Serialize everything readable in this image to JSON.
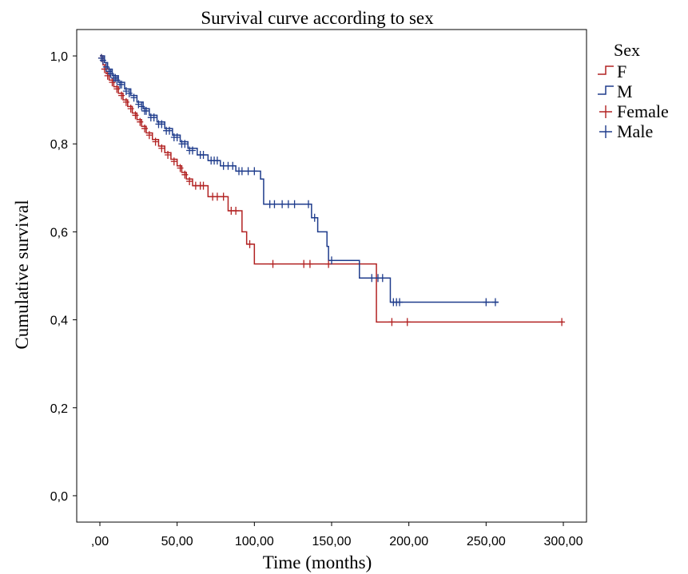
{
  "chart_data": {
    "type": "line",
    "title": "Survival curve according to sex",
    "xlabel": "Time (months)",
    "ylabel": "Cumulative survival",
    "xlim": [
      -15,
      315
    ],
    "ylim": [
      -0.06,
      1.06
    ],
    "x_ticks": [
      0,
      50,
      100,
      150,
      200,
      250,
      300
    ],
    "x_tick_labels": [
      ",00",
      "50,00",
      "100,00",
      "150,00",
      "200,00",
      "250,00",
      "300,00"
    ],
    "y_ticks": [
      0,
      0.2,
      0.4,
      0.6,
      0.8,
      1.0
    ],
    "y_tick_labels": [
      "0,0",
      "0,2",
      "0,4",
      "0,6",
      "0,8",
      "1,0"
    ],
    "grid": false,
    "legend": {
      "title": "Sex",
      "placement": "right-top",
      "entries": [
        {
          "label": "F",
          "kind": "step",
          "color": "#b22222"
        },
        {
          "label": "M",
          "kind": "step",
          "color": "#1f3c8c"
        },
        {
          "label": "Female",
          "kind": "censor",
          "color": "#b22222"
        },
        {
          "label": "Male",
          "kind": "censor",
          "color": "#1f3c8c"
        }
      ]
    },
    "series": [
      {
        "name": "F",
        "color": "#b22222",
        "steps": [
          [
            0,
            1.0
          ],
          [
            2,
            0.98
          ],
          [
            4,
            0.96
          ],
          [
            6,
            0.945
          ],
          [
            9,
            0.93
          ],
          [
            12,
            0.915
          ],
          [
            15,
            0.9
          ],
          [
            18,
            0.885
          ],
          [
            21,
            0.87
          ],
          [
            24,
            0.855
          ],
          [
            27,
            0.84
          ],
          [
            30,
            0.825
          ],
          [
            34,
            0.81
          ],
          [
            38,
            0.795
          ],
          [
            42,
            0.78
          ],
          [
            46,
            0.765
          ],
          [
            50,
            0.75
          ],
          [
            53,
            0.735
          ],
          [
            56,
            0.72
          ],
          [
            60,
            0.705
          ],
          [
            70,
            0.68
          ],
          [
            83,
            0.648
          ],
          [
            92,
            0.6
          ],
          [
            95,
            0.572
          ],
          [
            100,
            0.527
          ],
          [
            179,
            0.395
          ],
          [
            300,
            0.395
          ]
        ],
        "censored": [
          [
            1,
            0.995
          ],
          [
            3,
            0.97
          ],
          [
            5,
            0.955
          ],
          [
            8,
            0.94
          ],
          [
            11,
            0.925
          ],
          [
            14,
            0.91
          ],
          [
            17,
            0.895
          ],
          [
            20,
            0.88
          ],
          [
            23,
            0.865
          ],
          [
            26,
            0.85
          ],
          [
            29,
            0.835
          ],
          [
            32,
            0.82
          ],
          [
            36,
            0.805
          ],
          [
            40,
            0.79
          ],
          [
            44,
            0.775
          ],
          [
            48,
            0.76
          ],
          [
            52,
            0.745
          ],
          [
            55,
            0.73
          ],
          [
            58,
            0.715
          ],
          [
            62,
            0.705
          ],
          [
            65,
            0.705
          ],
          [
            67,
            0.705
          ],
          [
            73,
            0.68
          ],
          [
            76,
            0.68
          ],
          [
            80,
            0.68
          ],
          [
            85,
            0.648
          ],
          [
            88,
            0.648
          ],
          [
            97,
            0.572
          ],
          [
            112,
            0.527
          ],
          [
            132,
            0.527
          ],
          [
            136,
            0.527
          ],
          [
            148,
            0.527
          ],
          [
            189,
            0.395
          ],
          [
            199,
            0.395
          ],
          [
            299,
            0.395
          ]
        ]
      },
      {
        "name": "M",
        "color": "#1f3c8c",
        "steps": [
          [
            0,
            1.0
          ],
          [
            3,
            0.985
          ],
          [
            5,
            0.97
          ],
          [
            8,
            0.955
          ],
          [
            12,
            0.94
          ],
          [
            16,
            0.925
          ],
          [
            20,
            0.91
          ],
          [
            24,
            0.895
          ],
          [
            28,
            0.88
          ],
          [
            32,
            0.865
          ],
          [
            37,
            0.85
          ],
          [
            42,
            0.835
          ],
          [
            47,
            0.82
          ],
          [
            52,
            0.805
          ],
          [
            57,
            0.79
          ],
          [
            63,
            0.775
          ],
          [
            70,
            0.762
          ],
          [
            78,
            0.75
          ],
          [
            88,
            0.738
          ],
          [
            104,
            0.72
          ],
          [
            106,
            0.663
          ],
          [
            130,
            0.663
          ],
          [
            137,
            0.632
          ],
          [
            141,
            0.6
          ],
          [
            147,
            0.567
          ],
          [
            148,
            0.535
          ],
          [
            168,
            0.495
          ],
          [
            188,
            0.44
          ],
          [
            258,
            0.44
          ]
        ],
        "censored": [
          [
            1,
            0.995
          ],
          [
            2,
            0.99
          ],
          [
            4,
            0.975
          ],
          [
            6,
            0.965
          ],
          [
            7,
            0.96
          ],
          [
            9,
            0.95
          ],
          [
            10,
            0.95
          ],
          [
            11,
            0.945
          ],
          [
            13,
            0.935
          ],
          [
            14,
            0.935
          ],
          [
            17,
            0.92
          ],
          [
            19,
            0.915
          ],
          [
            22,
            0.905
          ],
          [
            25,
            0.89
          ],
          [
            27,
            0.885
          ],
          [
            29,
            0.875
          ],
          [
            30,
            0.875
          ],
          [
            33,
            0.86
          ],
          [
            35,
            0.86
          ],
          [
            38,
            0.845
          ],
          [
            40,
            0.845
          ],
          [
            43,
            0.83
          ],
          [
            45,
            0.83
          ],
          [
            48,
            0.815
          ],
          [
            50,
            0.815
          ],
          [
            53,
            0.8
          ],
          [
            55,
            0.8
          ],
          [
            58,
            0.785
          ],
          [
            60,
            0.785
          ],
          [
            65,
            0.775
          ],
          [
            67,
            0.775
          ],
          [
            72,
            0.762
          ],
          [
            74,
            0.762
          ],
          [
            76,
            0.762
          ],
          [
            80,
            0.75
          ],
          [
            83,
            0.75
          ],
          [
            86,
            0.75
          ],
          [
            90,
            0.738
          ],
          [
            92,
            0.738
          ],
          [
            96,
            0.738
          ],
          [
            100,
            0.738
          ],
          [
            110,
            0.663
          ],
          [
            113,
            0.663
          ],
          [
            118,
            0.663
          ],
          [
            122,
            0.663
          ],
          [
            126,
            0.663
          ],
          [
            135,
            0.663
          ],
          [
            139,
            0.632
          ],
          [
            150,
            0.535
          ],
          [
            176,
            0.495
          ],
          [
            180,
            0.495
          ],
          [
            183,
            0.495
          ],
          [
            190,
            0.44
          ],
          [
            192,
            0.44
          ],
          [
            194,
            0.44
          ],
          [
            250,
            0.44
          ],
          [
            256,
            0.44
          ]
        ]
      }
    ]
  }
}
